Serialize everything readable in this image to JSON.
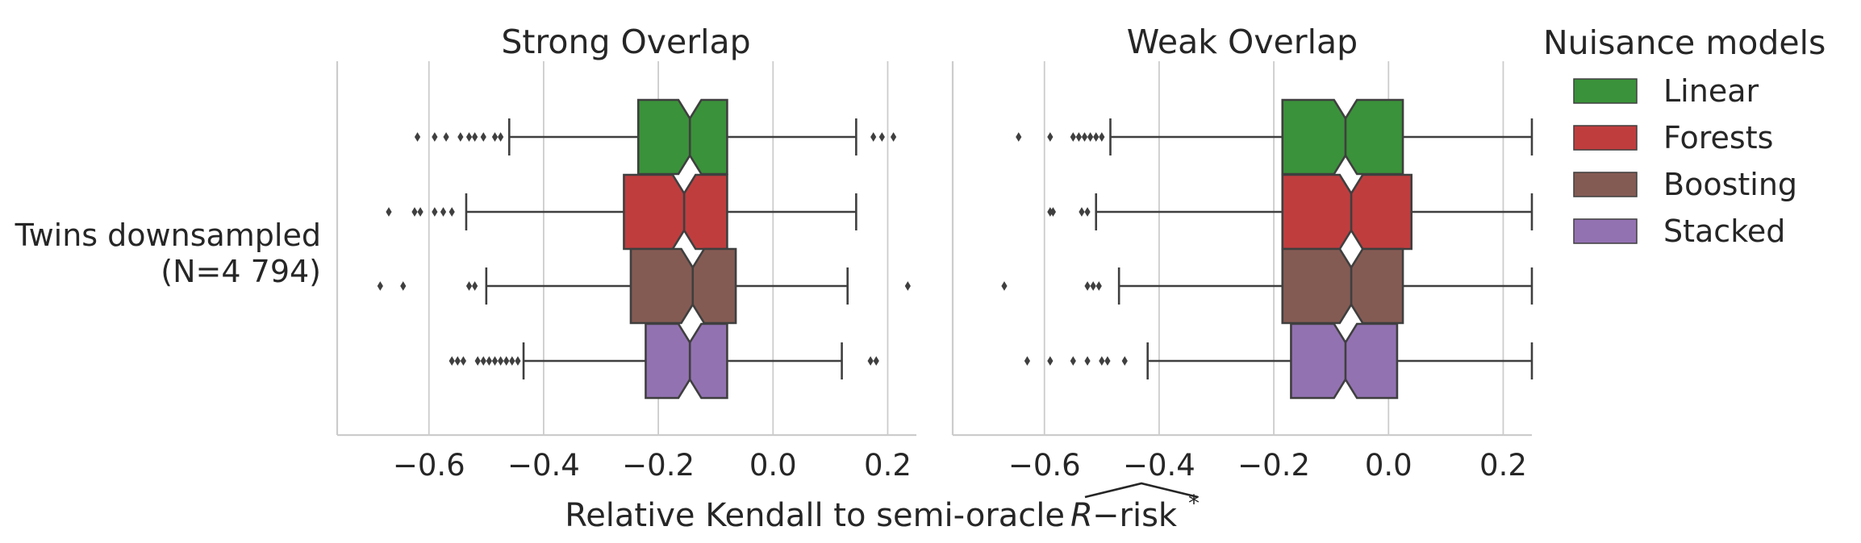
{
  "chart_data": {
    "type": "boxplot",
    "orientation": "horizontal",
    "notched": true,
    "shared_xlabel": "Relative Kendall to semi-oracle R−risk*",
    "xlabel_parts": {
      "base": "Relative Kendall to semi-oracle ",
      "symbol": "R",
      "suffix": "−risk",
      "sup": "*"
    },
    "row_label": [
      "Twins downsampled",
      "(N=4 794)"
    ],
    "xlim": [
      -0.76,
      0.25
    ],
    "xticks": [
      -0.6,
      -0.4,
      -0.2,
      0.0,
      0.2
    ],
    "xtick_labels": [
      "−0.6",
      "−0.4",
      "−0.2",
      "0.0",
      "0.2"
    ],
    "legend": {
      "title": "Nuisance models",
      "placement": "right",
      "entries": [
        {
          "label": "Linear",
          "color": "#3a923a"
        },
        {
          "label": "Forests",
          "color": "#c03d3e"
        },
        {
          "label": "Boosting",
          "color": "#845b53"
        },
        {
          "label": "Stacked",
          "color": "#9372b2"
        }
      ]
    },
    "panels": [
      {
        "title": "Strong Overlap",
        "series": [
          {
            "name": "Linear",
            "q1": -0.235,
            "median": -0.145,
            "q3": -0.08,
            "notch_low": -0.165,
            "notch_high": -0.125,
            "whisker_low": -0.46,
            "whisker_high": 0.145,
            "fliers": [
              -0.62,
              -0.59,
              -0.57,
              -0.545,
              -0.53,
              -0.52,
              -0.505,
              -0.485,
              -0.475,
              0.175,
              0.19,
              0.21
            ]
          },
          {
            "name": "Forests",
            "q1": -0.26,
            "median": -0.155,
            "q3": -0.08,
            "notch_low": -0.175,
            "notch_high": -0.135,
            "whisker_low": -0.535,
            "whisker_high": 0.145,
            "fliers": [
              -0.67,
              -0.625,
              -0.615,
              -0.59,
              -0.575,
              -0.56
            ]
          },
          {
            "name": "Boosting",
            "q1": -0.248,
            "median": -0.14,
            "q3": -0.065,
            "notch_low": -0.16,
            "notch_high": -0.12,
            "whisker_low": -0.5,
            "whisker_high": 0.13,
            "fliers": [
              -0.685,
              -0.645,
              -0.53,
              -0.52,
              0.235
            ]
          },
          {
            "name": "Stacked",
            "q1": -0.222,
            "median": -0.145,
            "q3": -0.08,
            "notch_low": -0.165,
            "notch_high": -0.125,
            "whisker_low": -0.435,
            "whisker_high": 0.12,
            "fliers": [
              -0.56,
              -0.55,
              -0.54,
              -0.515,
              -0.505,
              -0.495,
              -0.485,
              -0.475,
              -0.465,
              -0.455,
              -0.445,
              0.17,
              0.18
            ]
          }
        ]
      },
      {
        "title": "Weak Overlap",
        "series": [
          {
            "name": "Linear",
            "q1": -0.185,
            "median": -0.075,
            "q3": 0.025,
            "notch_low": -0.095,
            "notch_high": -0.055,
            "whisker_low": -0.485,
            "whisker_high": 0.25,
            "fliers": [
              -0.645,
              -0.59,
              -0.55,
              -0.54,
              -0.53,
              -0.52,
              -0.51,
              -0.5
            ]
          },
          {
            "name": "Forests",
            "q1": -0.185,
            "median": -0.065,
            "q3": 0.04,
            "notch_low": -0.085,
            "notch_high": -0.045,
            "whisker_low": -0.51,
            "whisker_high": 0.25,
            "fliers": [
              -0.59,
              -0.585,
              -0.535,
              -0.525
            ]
          },
          {
            "name": "Boosting",
            "q1": -0.185,
            "median": -0.065,
            "q3": 0.025,
            "notch_low": -0.085,
            "notch_high": -0.045,
            "whisker_low": -0.47,
            "whisker_high": 0.25,
            "fliers": [
              -0.67,
              -0.525,
              -0.515,
              -0.505
            ]
          },
          {
            "name": "Stacked",
            "q1": -0.17,
            "median": -0.075,
            "q3": 0.015,
            "notch_low": -0.095,
            "notch_high": -0.055,
            "whisker_low": -0.42,
            "whisker_high": 0.25,
            "fliers": [
              -0.63,
              -0.59,
              -0.55,
              -0.525,
              -0.5,
              -0.49,
              -0.46
            ]
          }
        ]
      }
    ]
  }
}
